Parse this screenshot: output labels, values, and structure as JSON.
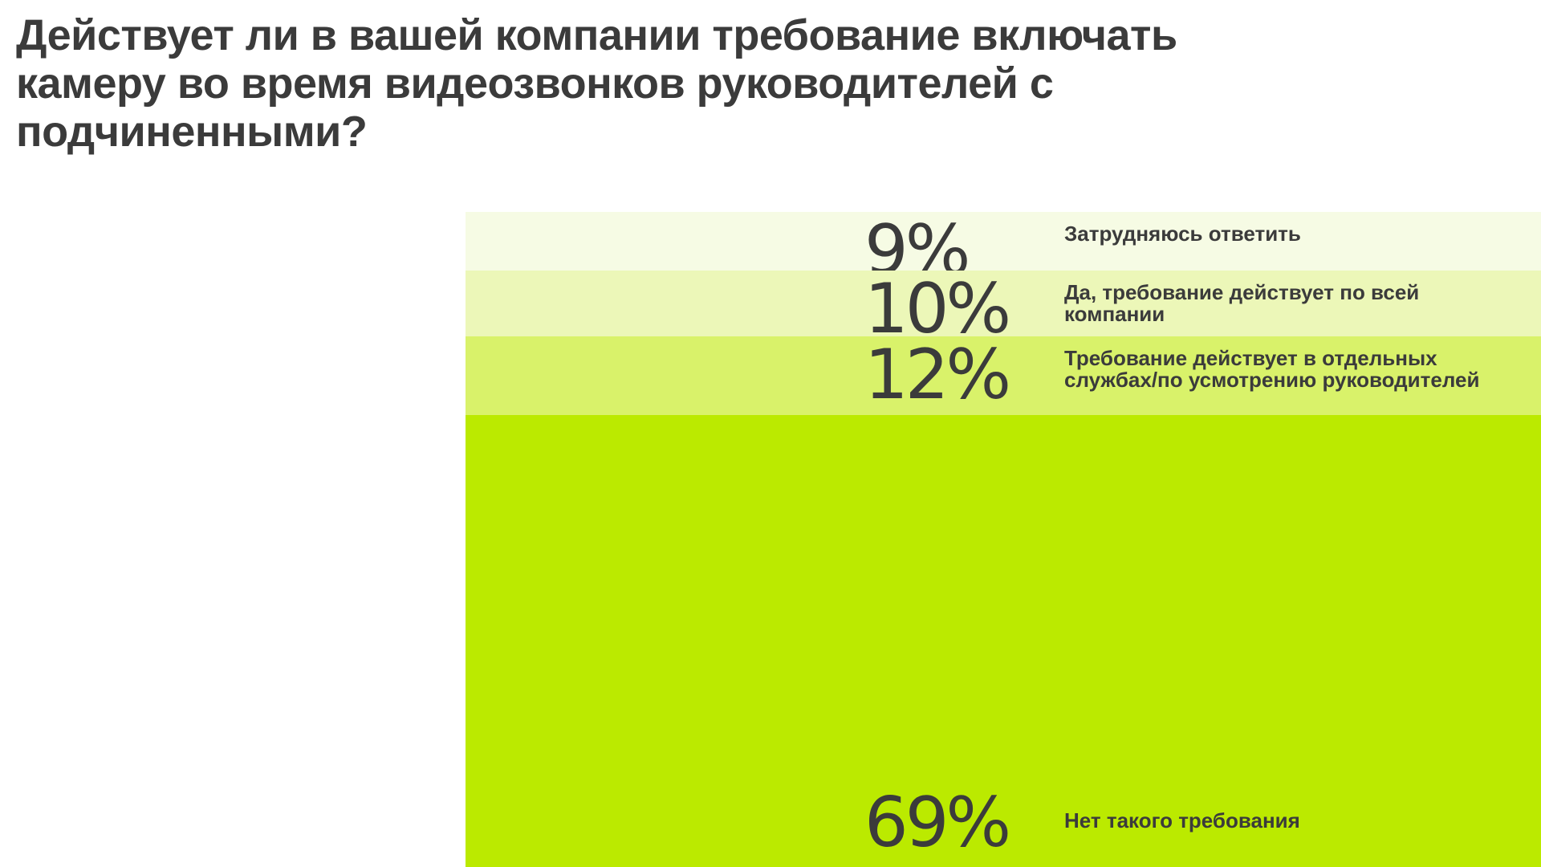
{
  "title": "Действует ли в вашей компании требование включать камеру во время видеозвонков руководителей с подчиненными?",
  "chart_data": {
    "type": "bar",
    "stacked": true,
    "orientation": "vertical-stack",
    "title": "Действует ли в вашей компании требование включать камеру во время видеозвонков руководителей с подчиненными?",
    "segments": [
      {
        "label": "Затрудняюсь ответить",
        "value": 9,
        "value_label": "9%",
        "color": "#f6fbe4"
      },
      {
        "label": "Да, требование действует по всей компании",
        "value": 10,
        "value_label": "10%",
        "color": "#ecf7b8"
      },
      {
        "label": "Требование действует в отдельных службах/по усмотрению руководителей",
        "value": 12,
        "value_label": "12%",
        "color": "#d9f26a"
      },
      {
        "label": "Нет такого требования",
        "value": 69,
        "value_label": "69%",
        "color": "#bbea00"
      }
    ],
    "unit": "%"
  }
}
